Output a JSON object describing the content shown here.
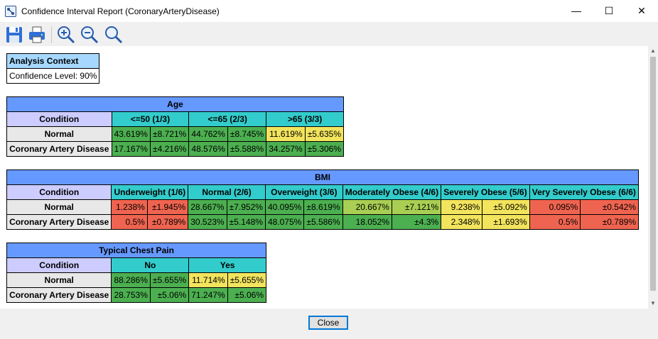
{
  "window": {
    "title": "Confidence Interval Report (CoronaryArteryDisease)",
    "minimize": "—",
    "maximize": "☐",
    "close": "✕"
  },
  "toolbar": {
    "icons": [
      "save-icon",
      "print-icon",
      "zoom-in-icon",
      "zoom-out-icon",
      "zoom-reset-icon"
    ]
  },
  "context": {
    "title": "Analysis Context",
    "value": "Confidence Level: 90%"
  },
  "age": {
    "title": "Age",
    "condition": "Condition",
    "states": [
      "<=50 (1/3)",
      "<=65 (2/3)",
      ">65 (3/3)"
    ],
    "rows": [
      {
        "label": "Normal",
        "cells": [
          {
            "v": "43.619%",
            "e": "±8.721%",
            "c": "g"
          },
          {
            "v": "44.762%",
            "e": "±8.745%",
            "c": "g"
          },
          {
            "v": "11.619%",
            "e": "±5.635%",
            "c": "y"
          }
        ]
      },
      {
        "label": "Coronary Artery Disease",
        "cells": [
          {
            "v": "17.167%",
            "e": "±4.216%",
            "c": "g"
          },
          {
            "v": "48.576%",
            "e": "±5.588%",
            "c": "g"
          },
          {
            "v": "34.257%",
            "e": "±5.306%",
            "c": "g"
          }
        ]
      }
    ]
  },
  "bmi": {
    "title": "BMI",
    "condition": "Condition",
    "states": [
      "Underweight (1/6)",
      "Normal (2/6)",
      "Overweight (3/6)",
      "Moderately Obese (4/6)",
      "Severely Obese (5/6)",
      "Very Severely Obese (6/6)"
    ],
    "rows": [
      {
        "label": "Normal",
        "cells": [
          {
            "v": "1.238%",
            "e": "±1.945%",
            "c": "r"
          },
          {
            "v": "28.667%",
            "e": "±7.952%",
            "c": "g"
          },
          {
            "v": "40.095%",
            "e": "±8.619%",
            "c": "g"
          },
          {
            "v": "20.667%",
            "e": "±7.121%",
            "c": "lg"
          },
          {
            "v": "9.238%",
            "e": "±5.092%",
            "c": "y"
          },
          {
            "v": "0.095%",
            "e": "±0.542%",
            "c": "r"
          }
        ]
      },
      {
        "label": "Coronary Artery Disease",
        "cells": [
          {
            "v": "0.5%",
            "e": "±0.789%",
            "c": "r"
          },
          {
            "v": "30.523%",
            "e": "±5.148%",
            "c": "g"
          },
          {
            "v": "48.075%",
            "e": "±5.586%",
            "c": "g"
          },
          {
            "v": "18.052%",
            "e": "±4.3%",
            "c": "g"
          },
          {
            "v": "2.348%",
            "e": "±1.693%",
            "c": "y"
          },
          {
            "v": "0.5%",
            "e": "±0.789%",
            "c": "r"
          }
        ]
      }
    ]
  },
  "chest": {
    "title": "Typical Chest Pain",
    "condition": "Condition",
    "states": [
      "No",
      "Yes"
    ],
    "rows": [
      {
        "label": "Normal",
        "cells": [
          {
            "v": "88.286%",
            "e": "±5.655%",
            "c": "g"
          },
          {
            "v": "11.714%",
            "e": "±5.655%",
            "c": "y"
          }
        ]
      },
      {
        "label": "Coronary Artery Disease",
        "cells": [
          {
            "v": "28.753%",
            "e": "±5.06%",
            "c": "g"
          },
          {
            "v": "71.247%",
            "e": "±5.06%",
            "c": "g"
          }
        ]
      }
    ]
  },
  "colors": {
    "g": "#4caf50",
    "lg": "#a8cf53",
    "y": "#f2e45d",
    "r": "#ef6450"
  },
  "footer": {
    "close_label": "Close"
  }
}
